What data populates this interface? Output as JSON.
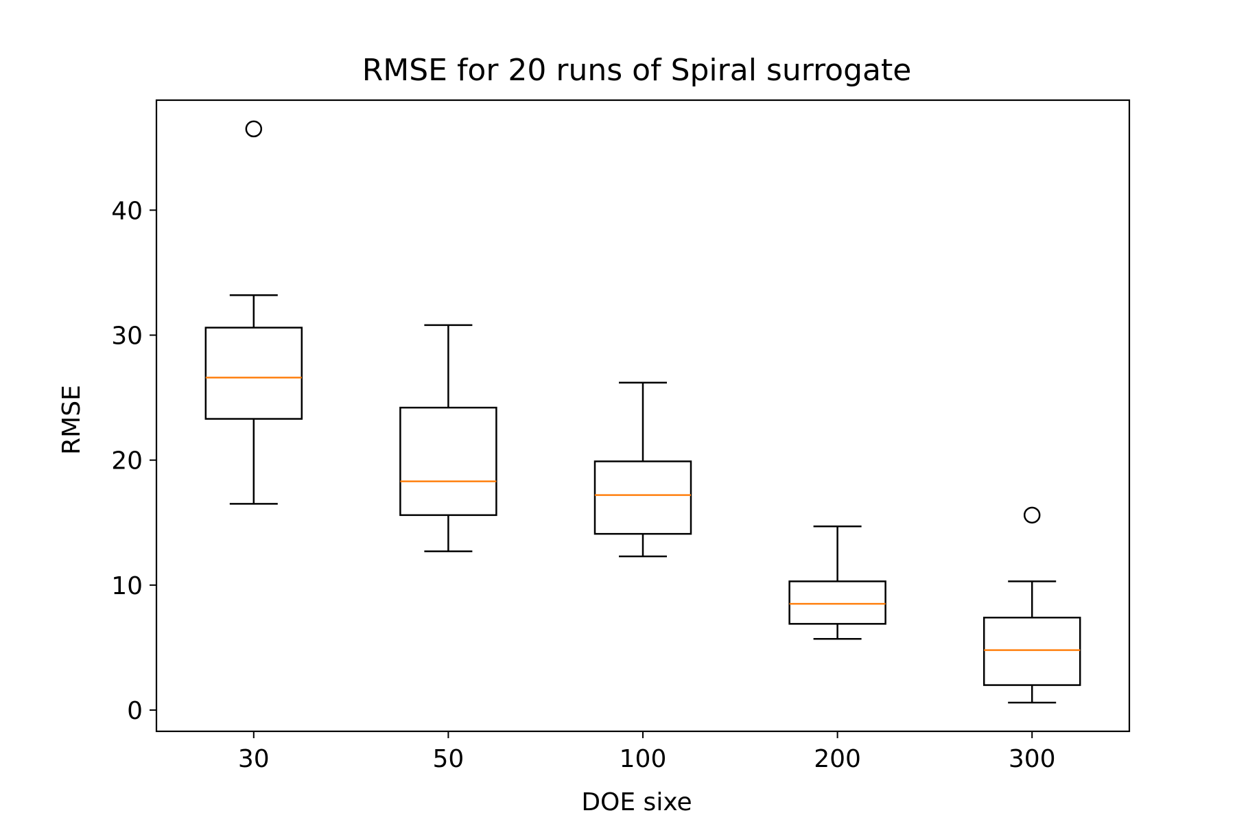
{
  "chart_data": {
    "type": "boxplot",
    "title": "RMSE for 20 runs of Spiral surrogate",
    "xlabel": "DOE sixe",
    "ylabel": "RMSE",
    "categories": [
      "30",
      "50",
      "100",
      "200",
      "300"
    ],
    "ylim": [
      -1.7,
      48.8
    ],
    "yticks": [
      0,
      10,
      20,
      30,
      40
    ],
    "ytick_labels": [
      "0",
      "10",
      "20",
      "30",
      "40"
    ],
    "grid": false,
    "boxes": [
      {
        "category": "30",
        "whisker_low": 16.5,
        "q1": 23.3,
        "median": 26.6,
        "q3": 30.6,
        "whisker_high": 33.2,
        "outliers": [
          46.5
        ]
      },
      {
        "category": "50",
        "whisker_low": 12.7,
        "q1": 15.6,
        "median": 18.3,
        "q3": 24.2,
        "whisker_high": 30.8,
        "outliers": []
      },
      {
        "category": "100",
        "whisker_low": 12.3,
        "q1": 14.1,
        "median": 17.2,
        "q3": 19.9,
        "whisker_high": 26.2,
        "outliers": []
      },
      {
        "category": "200",
        "whisker_low": 5.7,
        "q1": 6.9,
        "median": 8.5,
        "q3": 10.3,
        "whisker_high": 14.7,
        "outliers": []
      },
      {
        "category": "300",
        "whisker_low": 0.6,
        "q1": 2.0,
        "median": 4.8,
        "q3": 7.4,
        "whisker_high": 10.3,
        "outliers": [
          15.6
        ]
      }
    ],
    "colors": {
      "box": "#000000",
      "median": "#ff7f0e",
      "outlier": "#000000"
    }
  }
}
